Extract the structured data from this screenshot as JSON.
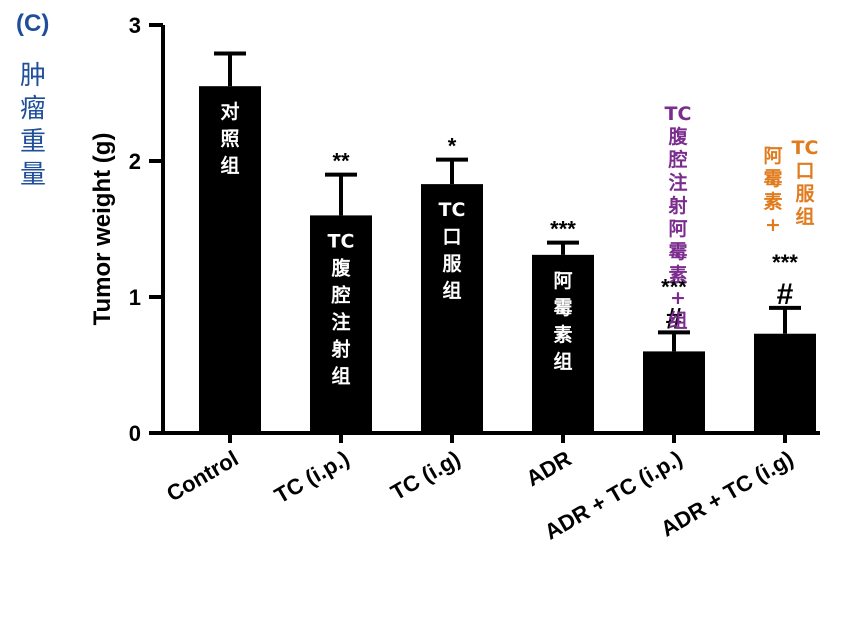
{
  "panel_label": "(C)",
  "side_label": "肿瘤重量",
  "colors": {
    "bar": "#000000",
    "purple": "#7b2d8e",
    "orange": "#e07b1e",
    "blue": "#1f4e9a"
  },
  "chart_data": {
    "type": "bar",
    "categories": [
      "Control",
      "TC (i.p.)",
      "TC (i.g)",
      "ADR",
      "ADR + TC (i.p.)",
      "ADR + TC (i.g)"
    ],
    "values": [
      2.55,
      1.6,
      1.83,
      1.31,
      0.6,
      0.73
    ],
    "errors": [
      0.24,
      0.3,
      0.18,
      0.09,
      0.14,
      0.19
    ],
    "significance": [
      "",
      "**",
      "*",
      "***",
      "***",
      "***"
    ],
    "hash_marks": [
      "",
      "",
      "",
      "",
      "#",
      "#"
    ],
    "bar_labels": [
      "对照组",
      "TC腹腔注射组",
      "TC口服组",
      "阿霉素组",
      "",
      ""
    ],
    "annotations": [
      {
        "index": 4,
        "text": "TC腹腔注射阿霉素+组",
        "color": "purple"
      },
      {
        "index": 5,
        "text": "阿霉素+TC口服组",
        "color": "orange"
      }
    ],
    "ylabel": "Tumor weight (g)",
    "xlabel": "",
    "ylim": [
      0,
      3
    ],
    "yticks": [
      "0",
      "1",
      "2",
      "3"
    ]
  }
}
